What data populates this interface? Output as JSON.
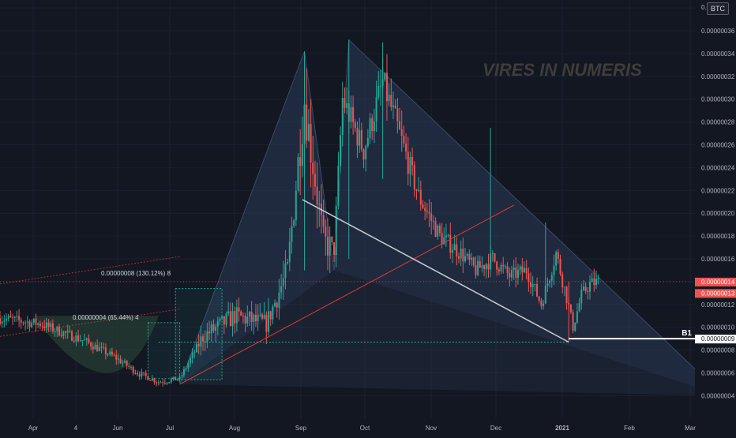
{
  "chart_data": {
    "type": "candlestick",
    "symbol_currency": "BTC",
    "watermark": "VIRES IN NUMERIS",
    "y_axis": {
      "range": [
        2.5e-09,
        3.9e-08
      ],
      "ticks": [
        3.8e-07,
        3.6e-07,
        3.4e-07,
        3.2e-07,
        3e-07,
        2.8e-07,
        2.6e-07,
        2.4e-07,
        2.2e-07,
        2e-07,
        1.8e-07,
        1.6e-07,
        1.4e-07,
        1.2e-07,
        1e-07,
        8e-08,
        6e-08,
        4e-08
      ],
      "top_tick_label": "0.0",
      "tick_labels": [
        "0.00000036",
        "0.00000034",
        "0.00000032",
        "0.00000030",
        "0.00000028",
        "0.00000026",
        "0.00000024",
        "0.00000022",
        "0.00000020",
        "0.00000018",
        "0.00000016",
        "0.00000014",
        "0.00000012",
        "0.00000010",
        "0.00000008",
        "0.00000006",
        "0.00000004"
      ]
    },
    "x_axis": {
      "labels": [
        "Apr",
        "4",
        "Jun",
        "Jul",
        "Aug",
        "Sep",
        "Oct",
        "Nov",
        "Dec",
        "2021",
        "Feb",
        "Mar"
      ]
    },
    "price_labels": [
      {
        "text": "0.00000014",
        "value": 1.4e-07
      },
      {
        "text": "0.00000013",
        "value": 1.3e-07
      }
    ],
    "b1_label": {
      "name": "B1",
      "text": "0.00000009",
      "value": 9e-08
    },
    "annotations": [
      {
        "text": "0.00000008 (130.12%) 8"
      },
      {
        "text": "0.00000004 (65.44%) 4"
      }
    ],
    "pattern_points": {
      "X": [
        "2020-05-25",
        5e-08
      ],
      "A": [
        "2020-07-23",
        3.42e-07
      ],
      "B": [
        "2020-08-06",
        1.5e-07
      ],
      "C": [
        "2020-08-13",
        3.52e-07
      ],
      "D": [
        "2021-02-06",
        4e-08
      ],
      "Dc": [
        "2020-11-25",
        8.7e-08
      ]
    },
    "colors": {
      "bull": "#26a69a",
      "bear": "#ef5350",
      "pattern_fill": "#2a3a55",
      "trend_red": "#e53935",
      "trend_white": "#c9ccd3",
      "b1_line": "#ffffff",
      "dotted_green": "#26a69a"
    }
  }
}
